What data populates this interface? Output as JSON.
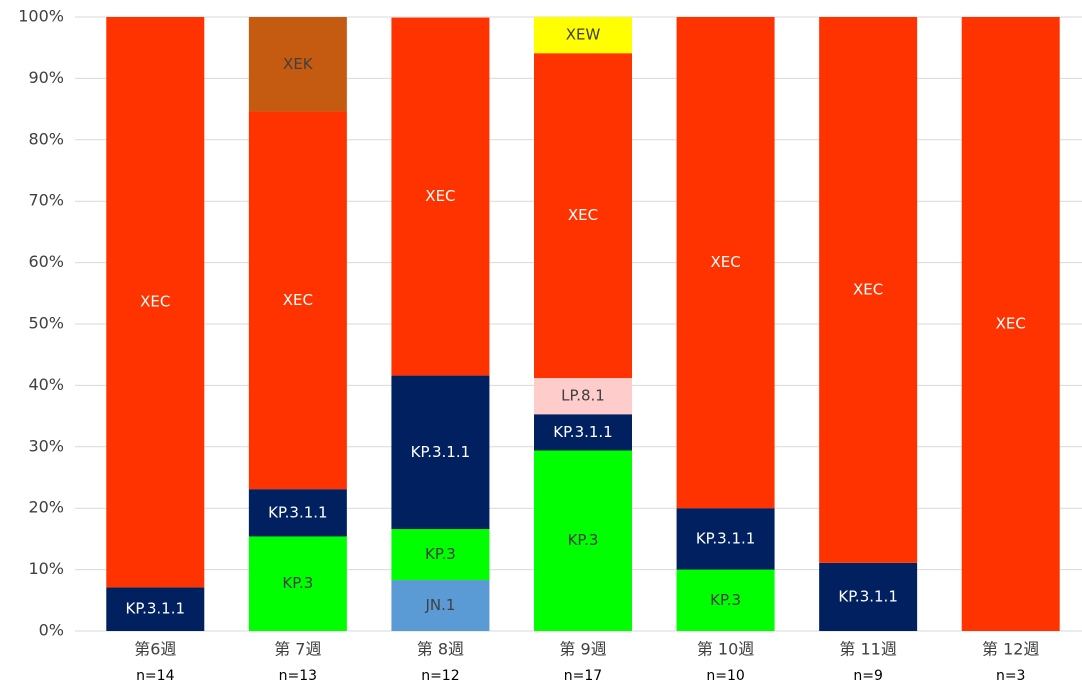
{
  "chart_data": {
    "type": "stacked_bar",
    "categories": [
      "第6週",
      "第 7週",
      "第 8週",
      "第 9週",
      "第 10週",
      "第 11週",
      "第 12週"
    ],
    "sample_sizes": [
      "n=14",
      "n=13",
      "n=12",
      "n=17",
      "n=10",
      "n=9",
      "n=3"
    ],
    "series": [
      {
        "name": "JN.1",
        "color": "#5b9bd5",
        "values": [
          null,
          null,
          8.3,
          null,
          null,
          null,
          null
        ]
      },
      {
        "name": "KP.3",
        "color": "#00ff00",
        "values": [
          null,
          15.4,
          8.3,
          29.4,
          10,
          null,
          null
        ]
      },
      {
        "name": "KP.3.1.1",
        "color": "#002060",
        "values": [
          7.1,
          7.7,
          25,
          5.9,
          10,
          11.1,
          null
        ]
      },
      {
        "name": "LP.8.1",
        "color": "#ffcccc",
        "values": [
          null,
          null,
          null,
          5.9,
          null,
          null,
          null
        ]
      },
      {
        "name": "XEC",
        "color": "#ff3300",
        "values": [
          92.9,
          61.5,
          58.3,
          52.9,
          80,
          88.9,
          100
        ]
      },
      {
        "name": "XEK",
        "color": "#c55a11",
        "values": [
          null,
          15.4,
          null,
          null,
          null,
          null,
          null
        ]
      },
      {
        "name": "XEW",
        "color": "#ffff00",
        "values": [
          null,
          null,
          null,
          5.9,
          null,
          null,
          null
        ]
      }
    ],
    "ylim": [
      0,
      100
    ],
    "yticks": [
      {
        "value": 0,
        "label": "0%"
      },
      {
        "value": 10,
        "label": "10%"
      },
      {
        "value": 20,
        "label": "20%"
      },
      {
        "value": 30,
        "label": "30%"
      },
      {
        "value": 40,
        "label": "40%"
      },
      {
        "value": 50,
        "label": "50%"
      },
      {
        "value": 60,
        "label": "60%"
      },
      {
        "value": 70,
        "label": "70%"
      },
      {
        "value": 80,
        "label": "80%"
      },
      {
        "value": 90,
        "label": "90%"
      },
      {
        "value": 100,
        "label": "100%"
      }
    ],
    "grid": true
  }
}
